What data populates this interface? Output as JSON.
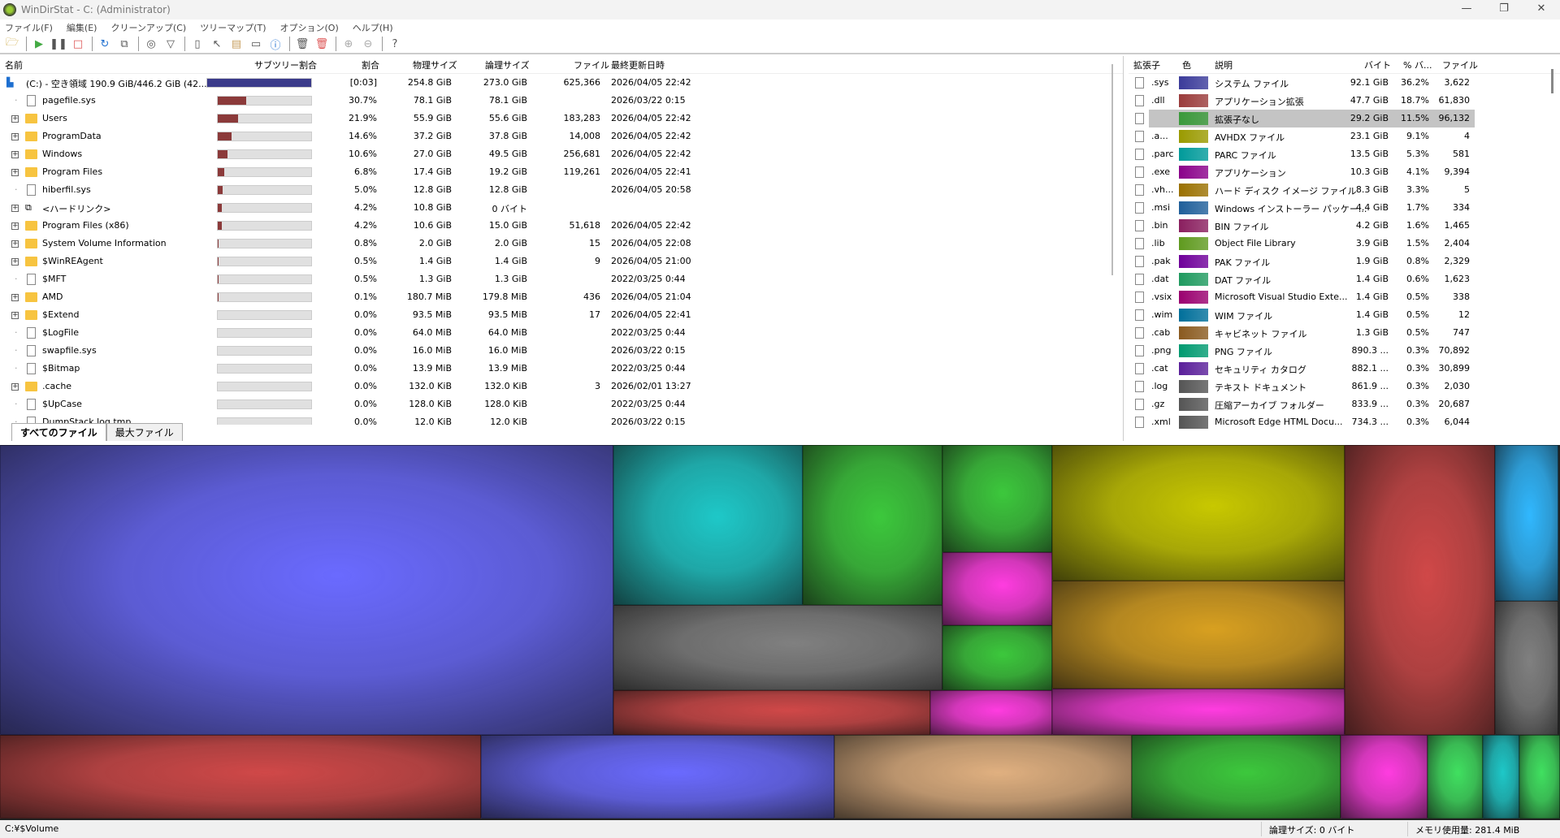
{
  "window": {
    "title": "WinDirStat - C:  (Administrator)"
  },
  "menu": [
    "ファイル(F)",
    "編集(E)",
    "クリーンアップ(C)",
    "ツリーマップ(T)",
    "オプション(O)",
    "ヘルプ(H)"
  ],
  "toolbar": {
    "help": "?"
  },
  "tree": {
    "columns": {
      "name": "名前",
      "subtree": "サブツリー割合",
      "percent": "割合",
      "physical": "物理サイズ",
      "logical": "論理サイズ",
      "files": "ファイル",
      "modified": "最終更新日時"
    },
    "root": {
      "name": "(C:) - 空き領域 190.9 GiB/446.2 GiB (42...",
      "percent": "[0:03]",
      "physical": "254.8 GiB",
      "logical": "273.0 GiB",
      "files": "625,366",
      "modified": "2026/04/05  22:42"
    },
    "rows": [
      {
        "type": "file",
        "name": "pagefile.sys",
        "subtree": 30.7,
        "percent": "30.7%",
        "physical": "78.1 GiB",
        "logical": "78.1 GiB",
        "files": "",
        "modified": "2026/03/22  0:15"
      },
      {
        "type": "folder",
        "name": "Users",
        "subtree": 21.9,
        "percent": "21.9%",
        "physical": "55.9 GiB",
        "logical": "55.6 GiB",
        "files": "183,283",
        "modified": "2026/04/05  22:42"
      },
      {
        "type": "folder",
        "name": "ProgramData",
        "subtree": 14.6,
        "percent": "14.6%",
        "physical": "37.2 GiB",
        "logical": "37.8 GiB",
        "files": "14,008",
        "modified": "2026/04/05  22:42"
      },
      {
        "type": "folder",
        "name": "Windows",
        "subtree": 10.6,
        "percent": "10.6%",
        "physical": "27.0 GiB",
        "logical": "49.5 GiB",
        "files": "256,681",
        "modified": "2026/04/05  22:42"
      },
      {
        "type": "folder",
        "name": "Program Files",
        "subtree": 6.8,
        "percent": "6.8%",
        "physical": "17.4 GiB",
        "logical": "19.2 GiB",
        "files": "119,261",
        "modified": "2026/04/05  22:41"
      },
      {
        "type": "file",
        "name": "hiberfil.sys",
        "subtree": 5.0,
        "percent": "5.0%",
        "physical": "12.8 GiB",
        "logical": "12.8 GiB",
        "files": "",
        "modified": "2026/04/05  20:58"
      },
      {
        "type": "hardlink",
        "name": "<ハードリンク>",
        "subtree": 4.2,
        "percent": "4.2%",
        "physical": "10.8 GiB",
        "logical": "0 バイト",
        "files": "",
        "modified": ""
      },
      {
        "type": "folder",
        "name": "Program Files (x86)",
        "subtree": 4.2,
        "percent": "4.2%",
        "physical": "10.6 GiB",
        "logical": "15.0 GiB",
        "files": "51,618",
        "modified": "2026/04/05  22:42"
      },
      {
        "type": "folder",
        "name": "System Volume Information",
        "subtree": 0.8,
        "percent": "0.8%",
        "physical": "2.0 GiB",
        "logical": "2.0 GiB",
        "files": "15",
        "modified": "2026/04/05  22:08"
      },
      {
        "type": "folder",
        "name": "$WinREAgent",
        "subtree": 0.5,
        "percent": "0.5%",
        "physical": "1.4 GiB",
        "logical": "1.4 GiB",
        "files": "9",
        "modified": "2026/04/05  21:00"
      },
      {
        "type": "file",
        "name": "$MFT",
        "subtree": 0.5,
        "percent": "0.5%",
        "physical": "1.3 GiB",
        "logical": "1.3 GiB",
        "files": "",
        "modified": "2022/03/25  0:44"
      },
      {
        "type": "folder",
        "name": "AMD",
        "subtree": 0.1,
        "percent": "0.1%",
        "physical": "180.7 MiB",
        "logical": "179.8 MiB",
        "files": "436",
        "modified": "2026/04/05  21:04"
      },
      {
        "type": "folder",
        "name": "$Extend",
        "subtree": 0.0,
        "percent": "0.0%",
        "physical": "93.5 MiB",
        "logical": "93.5 MiB",
        "files": "17",
        "modified": "2026/04/05  22:41"
      },
      {
        "type": "file",
        "name": "$LogFile",
        "subtree": 0.0,
        "percent": "0.0%",
        "physical": "64.0 MiB",
        "logical": "64.0 MiB",
        "files": "",
        "modified": "2022/03/25  0:44"
      },
      {
        "type": "file",
        "name": "swapfile.sys",
        "subtree": 0.0,
        "percent": "0.0%",
        "physical": "16.0 MiB",
        "logical": "16.0 MiB",
        "files": "",
        "modified": "2026/03/22  0:15"
      },
      {
        "type": "file",
        "name": "$Bitmap",
        "subtree": 0.0,
        "percent": "0.0%",
        "physical": "13.9 MiB",
        "logical": "13.9 MiB",
        "files": "",
        "modified": "2022/03/25  0:44"
      },
      {
        "type": "folder",
        "name": ".cache",
        "subtree": 0.0,
        "percent": "0.0%",
        "physical": "132.0 KiB",
        "logical": "132.0 KiB",
        "files": "3",
        "modified": "2026/02/01  13:27"
      },
      {
        "type": "file",
        "name": "$UpCase",
        "subtree": 0.0,
        "percent": "0.0%",
        "physical": "128.0 KiB",
        "logical": "128.0 KiB",
        "files": "",
        "modified": "2022/03/25  0:44"
      },
      {
        "type": "file",
        "name": "DumpStack.log.tmp",
        "subtree": 0.0,
        "percent": "0.0%",
        "physical": "12.0 KiB",
        "logical": "12.0 KiB",
        "files": "",
        "modified": "2026/03/22  0:15"
      }
    ],
    "tabs": [
      "すべてのファイル",
      "最大ファイル"
    ]
  },
  "extensions": {
    "columns": {
      "ext": "拡張子",
      "color": "色",
      "desc": "説明",
      "bytes": "バイト",
      "pct": "% バ...",
      "files": "ファイル"
    },
    "rows": [
      {
        "ext": ".sys",
        "color": "#3b3b9a",
        "desc": "システム ファイル",
        "bytes": "92.1 GiB",
        "pct": "36.2%",
        "files": "3,622"
      },
      {
        "ext": ".dll",
        "color": "#9a3b3b",
        "desc": "アプリケーション拡張",
        "bytes": "47.7 GiB",
        "pct": "18.7%",
        "files": "61,830"
      },
      {
        "ext": "",
        "color": "#3b9a3b",
        "desc": "拡張子なし",
        "bytes": "29.2 GiB",
        "pct": "11.5%",
        "files": "96,132",
        "selected": true
      },
      {
        "ext": ".a...",
        "color": "#9a9a00",
        "desc": "AVHDX ファイル",
        "bytes": "23.1 GiB",
        "pct": "9.1%",
        "files": "4"
      },
      {
        "ext": ".parc",
        "color": "#009a9a",
        "desc": "PARC ファイル",
        "bytes": "13.5 GiB",
        "pct": "5.3%",
        "files": "581"
      },
      {
        "ext": ".exe",
        "color": "#8a008a",
        "desc": "アプリケーション",
        "bytes": "10.3 GiB",
        "pct": "4.1%",
        "files": "9,394"
      },
      {
        "ext": ".vh...",
        "color": "#9a7000",
        "desc": "ハード ディスク イメージ ファイル",
        "bytes": "8.3 GiB",
        "pct": "3.3%",
        "files": "5"
      },
      {
        "ext": ".msi",
        "color": "#1f5f9a",
        "desc": "Windows インストーラー パッケー...",
        "bytes": "4.4 GiB",
        "pct": "1.7%",
        "files": "334"
      },
      {
        "ext": ".bin",
        "color": "#8a1f5f",
        "desc": "BIN ファイル",
        "bytes": "4.2 GiB",
        "pct": "1.6%",
        "files": "1,465"
      },
      {
        "ext": ".lib",
        "color": "#5f9a1f",
        "desc": "Object File Library",
        "bytes": "3.9 GiB",
        "pct": "1.5%",
        "files": "2,404"
      },
      {
        "ext": ".pak",
        "color": "#6f009a",
        "desc": "PAK ファイル",
        "bytes": "1.9 GiB",
        "pct": "0.8%",
        "files": "2,329"
      },
      {
        "ext": ".dat",
        "color": "#1f9a5f",
        "desc": "DAT ファイル",
        "bytes": "1.4 GiB",
        "pct": "0.6%",
        "files": "1,623"
      },
      {
        "ext": ".vsix",
        "color": "#9a006f",
        "desc": "Microsoft Visual Studio Exte...",
        "bytes": "1.4 GiB",
        "pct": "0.5%",
        "files": "338"
      },
      {
        "ext": ".wim",
        "color": "#006f9a",
        "desc": "WIM ファイル",
        "bytes": "1.4 GiB",
        "pct": "0.5%",
        "files": "12"
      },
      {
        "ext": ".cab",
        "color": "#8a5a1f",
        "desc": "キャビネット ファイル",
        "bytes": "1.3 GiB",
        "pct": "0.5%",
        "files": "747"
      },
      {
        "ext": ".png",
        "color": "#009a70",
        "desc": "PNG ファイル",
        "bytes": "890.3 ...",
        "pct": "0.3%",
        "files": "70,892"
      },
      {
        "ext": ".cat",
        "color": "#5a1f9a",
        "desc": "セキュリティ カタログ",
        "bytes": "882.1 ...",
        "pct": "0.3%",
        "files": "30,899"
      },
      {
        "ext": ".log",
        "color": "#555555",
        "desc": "テキスト ドキュメント",
        "bytes": "861.9 ...",
        "pct": "0.3%",
        "files": "2,030"
      },
      {
        "ext": ".gz",
        "color": "#555555",
        "desc": "圧縮アーカイブ フォルダー",
        "bytes": "833.9 ...",
        "pct": "0.3%",
        "files": "20,687"
      },
      {
        "ext": ".xml",
        "color": "#555555",
        "desc": "Microsoft Edge HTML Docu...",
        "bytes": "734.3 ...",
        "pct": "0.3%",
        "files": "6,044"
      }
    ]
  },
  "status": {
    "path": "C:¥$Volume",
    "logical": "論理サイズ: 0 バイト",
    "memory": "メモリ使用量: 281.4 MiB"
  }
}
